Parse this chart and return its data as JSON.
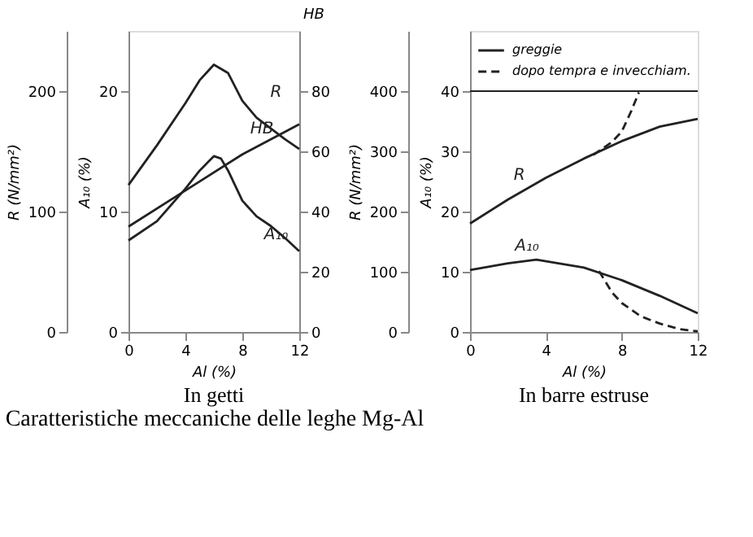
{
  "chart_data": [
    {
      "type": "line",
      "title": "Caratteristiche meccaniche delle leghe Mg-Al",
      "subtitle": "In getti",
      "xlabel": "Al (%)",
      "ylabel": "R (N/mm²)",
      "y2label": "A₁₀ (%)",
      "y3label": "HB",
      "xlim": [
        0,
        12
      ],
      "xticks": [
        0,
        4,
        8,
        12
      ],
      "ylim": [
        0,
        250
      ],
      "yticks": [
        0,
        100,
        200
      ],
      "y2lim": [
        0,
        25
      ],
      "y2ticks": [
        0,
        10,
        20
      ],
      "y3lim": [
        0,
        100
      ],
      "y3ticks": [
        0,
        20,
        40,
        60,
        80
      ],
      "grid": false,
      "legend": false,
      "series": [
        {
          "name": "R",
          "color": "#222222",
          "axis": "y",
          "x": [
            0,
            2,
            4,
            5,
            6,
            7,
            8,
            9,
            10,
            11,
            12
          ],
          "values": [
            122,
            155,
            190,
            209,
            222,
            215,
            192,
            178,
            169,
            160,
            152
          ]
        },
        {
          "name": "HB",
          "color": "#222222",
          "axis": "y3",
          "x": [
            0,
            4,
            8,
            12
          ],
          "values": [
            35,
            47,
            59,
            69
          ]
        },
        {
          "name": "A₁₀",
          "color": "#222222",
          "axis": "y2",
          "x": [
            0,
            2,
            4,
            5,
            6,
            6.5,
            7,
            8,
            9,
            10,
            11,
            12
          ],
          "values": [
            7.6,
            9.2,
            11.9,
            13.4,
            14.6,
            14.4,
            13.4,
            10.9,
            9.6,
            8.8,
            7.8,
            6.7
          ]
        }
      ]
    },
    {
      "type": "line",
      "subtitle": "In barre estruse",
      "xlabel": "Al (%)",
      "ylabel": "R (N/mm²)",
      "y2label": "A₁₀ (%)",
      "xlim": [
        0,
        12
      ],
      "xticks": [
        0,
        4,
        8,
        12
      ],
      "ylim": [
        0,
        500
      ],
      "yticks": [
        0,
        100,
        200,
        300,
        400
      ],
      "y2lim": [
        0,
        50
      ],
      "y2ticks": [
        0,
        10,
        20,
        30,
        40
      ],
      "grid": false,
      "legend": "top",
      "ref_lines": [
        {
          "axis": "y2",
          "value": 40,
          "color": "#222222"
        }
      ],
      "annotations": [
        {
          "text": "R",
          "x": 2.6,
          "y": 237
        },
        {
          "text": "A₁₀",
          "x": 3,
          "y": 119
        }
      ],
      "series": [
        {
          "name": "greggie",
          "color": "#222222",
          "axis": "y",
          "line_style": "solid",
          "x": [
            0,
            2,
            4,
            6,
            8,
            10,
            12
          ],
          "values": [
            180,
            220,
            256,
            288,
            317,
            341,
            354
          ]
        },
        {
          "name": "dopo tempra e invecchiam.",
          "color": "#222222",
          "axis": "y",
          "line_style": "dashed",
          "x": [
            6.5,
            7.5,
            8,
            8.5,
            8.9
          ],
          "values": [
            294,
            316,
            333,
            367,
            398
          ]
        },
        {
          "color": "#222222",
          "axis": "y2",
          "line_style": "solid",
          "x": [
            0,
            2,
            3.5,
            6,
            8,
            10,
            12
          ],
          "values": [
            10.3,
            11.4,
            12.0,
            10.7,
            8.6,
            6.0,
            3.1
          ]
        },
        {
          "color": "#222222",
          "axis": "y2",
          "line_style": "dashed",
          "x": [
            6.8,
            7.5,
            8,
            9,
            10,
            11,
            12
          ],
          "values": [
            10.1,
            6.5,
            4.8,
            2.6,
            1.4,
            0.5,
            0.1
          ]
        }
      ]
    }
  ]
}
